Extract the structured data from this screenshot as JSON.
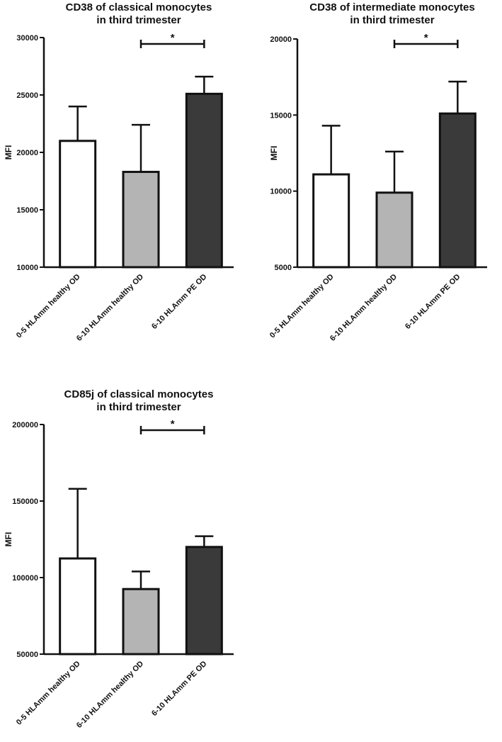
{
  "chart_data": [
    {
      "type": "bar",
      "title_lines": [
        "CD38 of classical monocytes",
        "in third trimester"
      ],
      "ylabel": "MFI",
      "xlabel": "",
      "categories": [
        "0-5 HLAmm healthy OD",
        "6-10 HLAmm healthy OD",
        "6-10 HLAmm PE OD"
      ],
      "values": [
        21000,
        18300,
        25100
      ],
      "error_upper": [
        24000,
        22400,
        26600
      ],
      "bar_colors": [
        "#ffffff",
        "#b4b4b4",
        "#3a3a3a"
      ],
      "ylim": [
        10000,
        30000
      ],
      "yticks": [
        10000,
        15000,
        20000,
        25000,
        30000
      ],
      "yticklabels": [
        "10000",
        "15000",
        "20000",
        "25000",
        "30000"
      ],
      "significance": {
        "from": 1,
        "to": 2,
        "label": "*"
      }
    },
    {
      "type": "bar",
      "title_lines": [
        "CD38 of intermediate monocytes",
        "in third trimester"
      ],
      "ylabel": "MFI",
      "xlabel": "",
      "categories": [
        "0-5 HLAmm healthy OD",
        "6-10 HLAmm healthy OD",
        "6-10 HLAmm PE OD"
      ],
      "values": [
        11100,
        9900,
        15100
      ],
      "error_upper": [
        14300,
        12600,
        17200
      ],
      "bar_colors": [
        "#ffffff",
        "#b4b4b4",
        "#3a3a3a"
      ],
      "ylim": [
        5000,
        20000
      ],
      "yticks": [
        5000,
        10000,
        15000,
        20000
      ],
      "yticklabels": [
        "5000",
        "10000",
        "15000",
        "20000"
      ],
      "significance": {
        "from": 1,
        "to": 2,
        "label": "*"
      }
    },
    {
      "type": "bar",
      "title_lines": [
        "CD85j of classical monocytes",
        "in third trimester"
      ],
      "ylabel": "MFI",
      "xlabel": "",
      "categories": [
        "0-5 HLAmm healthy OD",
        "6-10 HLAmm healthy OD",
        "6-10 HLAmm PE OD"
      ],
      "values": [
        112500,
        92500,
        120000
      ],
      "error_upper": [
        158000,
        104000,
        127000
      ],
      "bar_colors": [
        "#ffffff",
        "#b4b4b4",
        "#3a3a3a"
      ],
      "ylim": [
        50000,
        200000
      ],
      "yticks": [
        50000,
        100000,
        150000,
        200000
      ],
      "yticklabels": [
        "50000",
        "100000",
        "150000",
        "200000"
      ],
      "significance": {
        "from": 1,
        "to": 2,
        "label": "*"
      }
    }
  ]
}
